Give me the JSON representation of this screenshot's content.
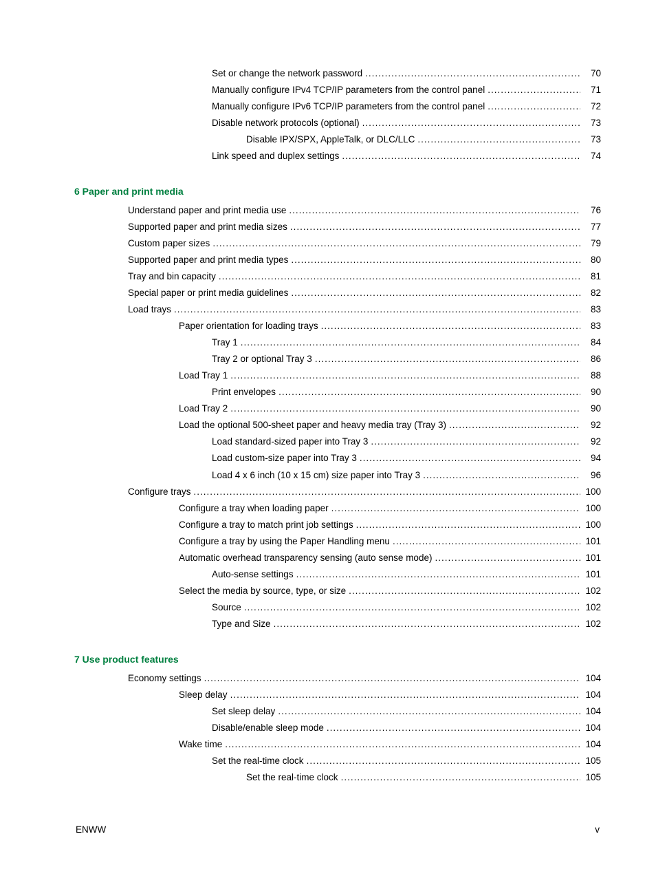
{
  "colors": {
    "section_title": "#008040",
    "text": "#000000",
    "background": "#ffffff"
  },
  "typography": {
    "body_fontsize_pt": 10,
    "title_fontsize_pt": 10.5,
    "title_fontweight": "bold",
    "font_family": "Arial"
  },
  "pre_section": {
    "entries": [
      {
        "label": "Set or change the network password",
        "page": "70",
        "indent": 2
      },
      {
        "label": "Manually configure IPv4 TCP/IP parameters from the control panel",
        "page": "71",
        "indent": 2
      },
      {
        "label": "Manually configure IPv6 TCP/IP parameters from the control panel",
        "page": "72",
        "indent": 2
      },
      {
        "label": "Disable network protocols (optional)",
        "page": "73",
        "indent": 2
      },
      {
        "label": "Disable IPX/SPX, AppleTalk, or DLC/LLC",
        "page": "73",
        "indent": 3
      },
      {
        "label": "Link speed and duplex settings",
        "page": "74",
        "indent": 2
      }
    ]
  },
  "sections": [
    {
      "number": "6",
      "title": "Paper and print media",
      "entries": [
        {
          "label": "Understand paper and print media use",
          "page": "76",
          "indent": 0
        },
        {
          "label": "Supported paper and print media sizes",
          "page": "77",
          "indent": 0
        },
        {
          "label": "Custom paper sizes",
          "page": "79",
          "indent": 0
        },
        {
          "label": "Supported paper and print media types",
          "page": "80",
          "indent": 0
        },
        {
          "label": "Tray and bin capacity",
          "page": "81",
          "indent": 0
        },
        {
          "label": "Special paper or print media guidelines",
          "page": "82",
          "indent": 0
        },
        {
          "label": "Load trays",
          "page": "83",
          "indent": 0
        },
        {
          "label": "Paper orientation for loading trays",
          "page": "83",
          "indent": 1
        },
        {
          "label": "Tray 1",
          "page": "84",
          "indent": 2
        },
        {
          "label": "Tray 2 or optional Tray 3",
          "page": "86",
          "indent": 2
        },
        {
          "label": "Load Tray 1",
          "page": "88",
          "indent": 1
        },
        {
          "label": "Print envelopes",
          "page": "90",
          "indent": 2
        },
        {
          "label": "Load Tray 2",
          "page": "90",
          "indent": 1
        },
        {
          "label": "Load the optional 500-sheet paper and heavy media tray (Tray 3)",
          "page": "92",
          "indent": 1
        },
        {
          "label": "Load standard-sized paper into Tray 3 ",
          "page": "92",
          "indent": 2
        },
        {
          "label": "Load custom-size paper into Tray 3",
          "page": "94",
          "indent": 2
        },
        {
          "label": "Load 4 x 6 inch (10 x 15 cm) size paper into Tray 3",
          "page": "96",
          "indent": 2
        },
        {
          "label": "Configure trays",
          "page": "100",
          "indent": 0
        },
        {
          "label": "Configure a tray when loading paper",
          "page": "100",
          "indent": 1
        },
        {
          "label": "Configure a tray to match print job settings",
          "page": "100",
          "indent": 1
        },
        {
          "label": "Configure a tray by using the Paper Handling menu",
          "page": "101",
          "indent": 1
        },
        {
          "label": "Automatic overhead transparency sensing (auto sense mode)",
          "page": "101",
          "indent": 1
        },
        {
          "label": "Auto-sense settings",
          "page": "101",
          "indent": 2
        },
        {
          "label": "Select the media by source, type, or size",
          "page": "102",
          "indent": 1
        },
        {
          "label": "Source",
          "page": "102",
          "indent": 2
        },
        {
          "label": "Type and Size",
          "page": "102",
          "indent": 2
        }
      ]
    },
    {
      "number": "7",
      "title": "Use product features",
      "entries": [
        {
          "label": "Economy settings",
          "page": "104",
          "indent": 0
        },
        {
          "label": "Sleep delay",
          "page": "104",
          "indent": 1
        },
        {
          "label": "Set sleep delay",
          "page": "104",
          "indent": 2
        },
        {
          "label": "Disable/enable sleep mode",
          "page": "104",
          "indent": 2
        },
        {
          "label": "Wake time",
          "page": "104",
          "indent": 1
        },
        {
          "label": "Set the real-time clock",
          "page": "105",
          "indent": 2
        },
        {
          "label": "Set the real-time clock",
          "page": "105",
          "indent": 3
        }
      ]
    }
  ],
  "footer": {
    "left": "ENWW",
    "right": "v"
  }
}
